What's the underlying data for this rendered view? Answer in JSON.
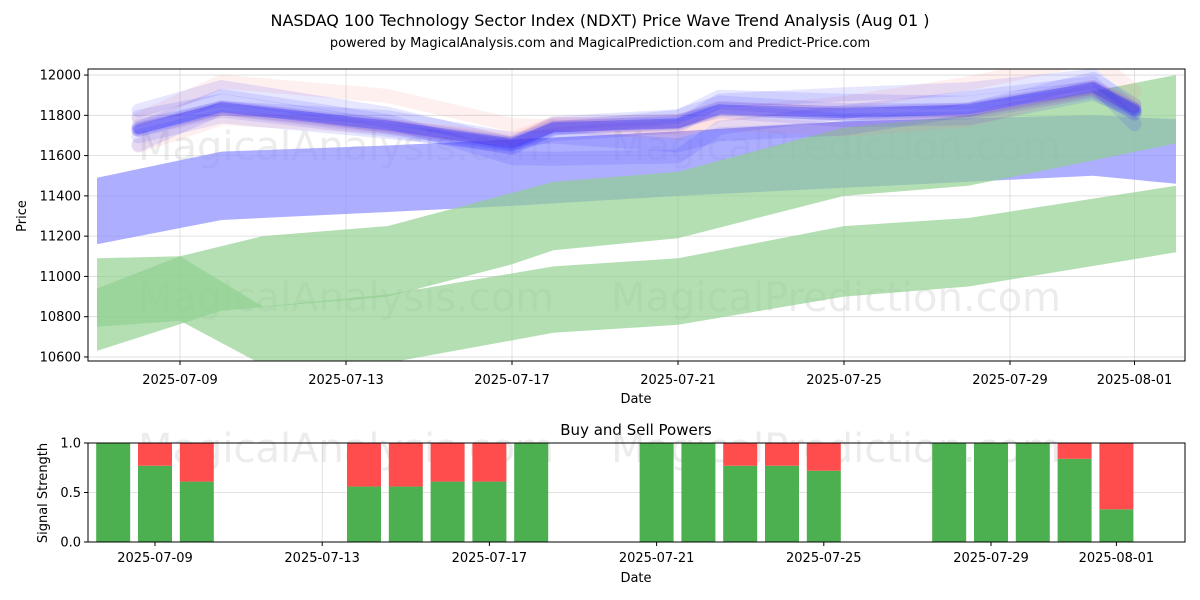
{
  "header": {
    "title": "NASDAQ 100 Technology Sector Index (NDXT) Price Wave Trend Analysis (Aug 01 )",
    "subtitle": "powered by MagicalAnalysis.com and MagicalPrediction.com and Predict-Price.com"
  },
  "watermarks": [
    "MagicalAnalysis.com",
    "MagicalPrediction.com"
  ],
  "colors": {
    "buy": "#4caf50",
    "sell": "#ff4d4d",
    "wave_blue": "#3030ff",
    "wave_pink": "#ff8080",
    "band_blue": "#8c8cff",
    "band_green": "#8fd08f"
  },
  "chart_data": [
    {
      "type": "area",
      "xlabel": "Date",
      "ylabel": "Price",
      "ylim": [
        10580,
        12030
      ],
      "y_ticks": [
        10600,
        10800,
        11000,
        11200,
        11400,
        11600,
        11800,
        12000
      ],
      "x_ticks": [
        "2025-07-09",
        "2025-07-13",
        "2025-07-17",
        "2025-07-21",
        "2025-07-25",
        "2025-07-29",
        "2025-08-01"
      ],
      "grid": true,
      "wave_series": {
        "dates": [
          "2025-07-08",
          "2025-07-10",
          "2025-07-14",
          "2025-07-17",
          "2025-07-18",
          "2025-07-21",
          "2025-07-22",
          "2025-07-25",
          "2025-07-28",
          "2025-07-31",
          "2025-08-01"
        ],
        "values": [
          11730,
          11840,
          11750,
          11660,
          11740,
          11760,
          11830,
          11810,
          11830,
          11940,
          11830
        ]
      },
      "bands": [
        {
          "color": "blue",
          "upper": [
            [
              "2025-07-07",
              11490
            ],
            [
              "2025-07-10",
              11620
            ],
            [
              "2025-07-14",
              11650
            ],
            [
              "2025-07-17",
              11680
            ],
            [
              "2025-07-21",
              11720
            ],
            [
              "2025-07-25",
              11770
            ],
            [
              "2025-07-29",
              11790
            ],
            [
              "2025-07-31",
              11800
            ],
            [
              "2025-08-02",
              11780
            ]
          ],
          "lower": [
            [
              "2025-07-07",
              11160
            ],
            [
              "2025-07-10",
              11280
            ],
            [
              "2025-07-14",
              11320
            ],
            [
              "2025-07-17",
              11350
            ],
            [
              "2025-07-21",
              11400
            ],
            [
              "2025-07-25",
              11440
            ],
            [
              "2025-07-29",
              11480
            ],
            [
              "2025-07-31",
              11500
            ],
            [
              "2025-08-02",
              11460
            ]
          ]
        },
        {
          "color": "green",
          "upper": [
            [
              "2025-07-07",
              10940
            ],
            [
              "2025-07-09",
              11100
            ],
            [
              "2025-07-11",
              11200
            ],
            [
              "2025-07-14",
              11250
            ],
            [
              "2025-07-18",
              11470
            ],
            [
              "2025-07-21",
              11520
            ],
            [
              "2025-07-25",
              11740
            ],
            [
              "2025-07-28",
              11800
            ],
            [
              "2025-08-02",
              12000
            ]
          ],
          "lower": [
            [
              "2025-07-07",
              10630
            ],
            [
              "2025-07-10",
              10830
            ],
            [
              "2025-07-14",
              10900
            ],
            [
              "2025-07-17",
              11060
            ],
            [
              "2025-07-18",
              11130
            ],
            [
              "2025-07-21",
              11190
            ],
            [
              "2025-07-25",
              11400
            ],
            [
              "2025-07-28",
              11450
            ],
            [
              "2025-08-02",
              11660
            ]
          ]
        },
        {
          "color": "green",
          "upper": [
            [
              "2025-07-07",
              11090
            ],
            [
              "2025-07-09",
              11100
            ],
            [
              "2025-07-11",
              10850
            ],
            [
              "2025-07-14",
              10910
            ],
            [
              "2025-07-18",
              11050
            ],
            [
              "2025-07-21",
              11090
            ],
            [
              "2025-07-25",
              11250
            ],
            [
              "2025-07-28",
              11290
            ],
            [
              "2025-08-02",
              11450
            ]
          ],
          "lower": [
            [
              "2025-07-07",
              10750
            ],
            [
              "2025-07-09",
              10780
            ],
            [
              "2025-07-11",
              10560
            ],
            [
              "2025-07-14",
              10570
            ],
            [
              "2025-07-18",
              10720
            ],
            [
              "2025-07-21",
              10760
            ],
            [
              "2025-07-25",
              10900
            ],
            [
              "2025-07-28",
              10950
            ],
            [
              "2025-08-02",
              11120
            ]
          ]
        }
      ]
    },
    {
      "type": "bar",
      "title": "Buy and Sell Powers",
      "xlabel": "Date",
      "ylabel": "Signal Strength",
      "ylim": [
        0,
        1
      ],
      "y_ticks": [
        "0.0",
        "0.5",
        "1.0"
      ],
      "x_ticks": [
        "2025-07-09",
        "2025-07-13",
        "2025-07-17",
        "2025-07-21",
        "2025-07-25",
        "2025-07-29",
        "2025-08-01"
      ],
      "dates": [
        "2025-07-08",
        "2025-07-09",
        "2025-07-10",
        "2025-07-14",
        "2025-07-15",
        "2025-07-16",
        "2025-07-17",
        "2025-07-18",
        "2025-07-21",
        "2025-07-22",
        "2025-07-23",
        "2025-07-24",
        "2025-07-25",
        "2025-07-28",
        "2025-07-29",
        "2025-07-30",
        "2025-07-31",
        "2025-08-01"
      ],
      "series": [
        {
          "name": "buy",
          "values": [
            1.0,
            0.77,
            0.61,
            0.56,
            0.56,
            0.61,
            0.61,
            1.0,
            1.0,
            1.0,
            0.77,
            0.77,
            0.72,
            1.0,
            1.0,
            1.0,
            0.84,
            0.33
          ]
        },
        {
          "name": "sell",
          "values": [
            0.0,
            0.23,
            0.39,
            0.44,
            0.44,
            0.39,
            0.39,
            0.0,
            0.0,
            0.0,
            0.23,
            0.23,
            0.28,
            0.0,
            0.0,
            0.0,
            0.16,
            0.67
          ]
        }
      ]
    }
  ]
}
